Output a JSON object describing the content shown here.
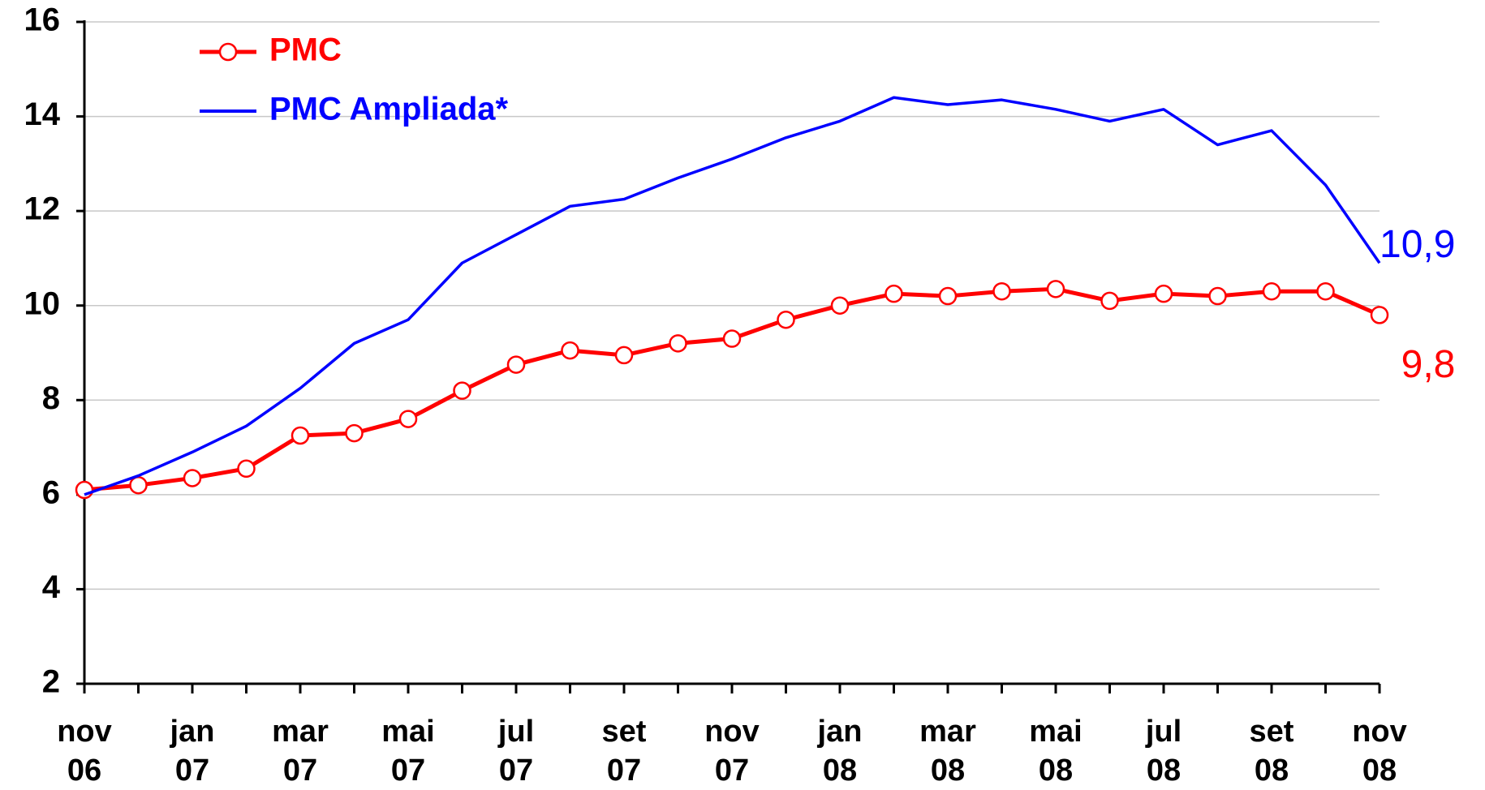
{
  "chart_data": {
    "type": "line",
    "categories": [
      "nov 06",
      null,
      "jan 07",
      null,
      "mar 07",
      null,
      "mai 07",
      null,
      "jul 07",
      null,
      "set 07",
      null,
      "nov 07",
      null,
      "jan 08",
      null,
      "mar 08",
      null,
      "mai 08",
      null,
      "jul 08",
      null,
      "set 08",
      null,
      "nov 08"
    ],
    "series": [
      {
        "name": "PMC",
        "color": "#ff0000",
        "markers": true,
        "values": [
          6.1,
          6.2,
          6.35,
          6.55,
          7.25,
          7.3,
          7.6,
          8.2,
          8.75,
          9.05,
          8.95,
          9.2,
          9.3,
          9.7,
          10.0,
          10.25,
          10.2,
          10.3,
          10.35,
          10.1,
          10.25,
          10.2,
          10.3,
          10.3,
          9.8
        ],
        "value_labels": [
          null,
          null,
          null,
          null,
          null,
          null,
          null,
          null,
          null,
          null,
          null,
          null,
          null,
          null,
          null,
          null,
          null,
          null,
          null,
          null,
          null,
          null,
          null,
          null,
          "9,8"
        ]
      },
      {
        "name": "PMC Ampliada*",
        "color": "#0000ff",
        "markers": false,
        "values": [
          6.0,
          6.4,
          6.9,
          7.45,
          8.25,
          9.2,
          9.7,
          10.9,
          11.5,
          12.1,
          12.25,
          12.7,
          13.1,
          13.55,
          13.9,
          14.4,
          14.25,
          14.35,
          14.15,
          13.9,
          14.15,
          13.4,
          13.7,
          12.55,
          10.9
        ],
        "value_labels": [
          null,
          null,
          null,
          null,
          null,
          null,
          null,
          null,
          null,
          null,
          null,
          null,
          null,
          null,
          null,
          null,
          null,
          null,
          null,
          null,
          null,
          null,
          null,
          null,
          "10,9"
        ]
      }
    ],
    "ylim": [
      2,
      16
    ],
    "yticks": [
      2,
      4,
      6,
      8,
      10,
      12,
      14,
      16
    ],
    "grid": true,
    "legend": "upper left"
  }
}
